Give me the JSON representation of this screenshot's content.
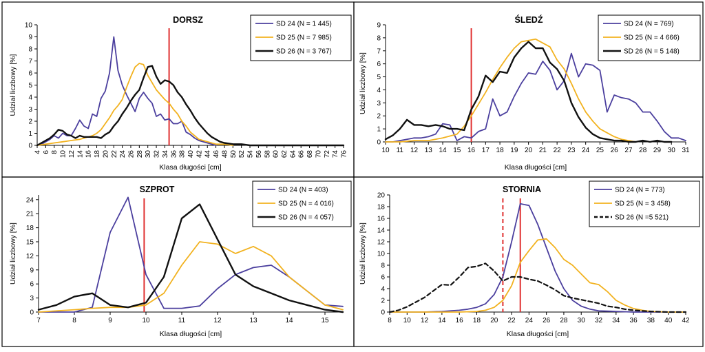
{
  "chart_data": [
    {
      "type": "line",
      "title": "DORSZ",
      "xlabel": "Klasa długości [cm]",
      "ylabel": "Udział liczbowy [%]",
      "xlim": [
        4,
        76
      ],
      "ylim": [
        0,
        10
      ],
      "xticks": [
        4,
        6,
        8,
        10,
        12,
        14,
        16,
        18,
        20,
        22,
        24,
        26,
        28,
        30,
        32,
        34,
        36,
        38,
        40,
        42,
        44,
        46,
        48,
        50,
        52,
        54,
        56,
        58,
        60,
        62,
        64,
        66,
        68,
        70,
        72,
        74,
        76
      ],
      "xtick_labels": [
        "4",
        "6",
        "8",
        "10",
        "12",
        "14",
        "16",
        "18",
        "20",
        "22",
        "24",
        "26",
        "28",
        "30",
        "32",
        "34",
        "36",
        "38",
        "40",
        "42",
        "44",
        "46",
        "48",
        "50",
        "52",
        "54",
        "56",
        "58",
        "60",
        "62",
        "64",
        "66",
        "68",
        "70",
        "72",
        "74",
        "76"
      ],
      "yticks": [
        0,
        1,
        2,
        3,
        4,
        5,
        6,
        7,
        8,
        9,
        10
      ],
      "legend_position": "top-right",
      "vlines": [
        {
          "x": 35,
          "color": "#e03030",
          "style": "solid"
        }
      ],
      "series": [
        {
          "name": "SD 24 (N = 1 445)",
          "color": "#4b3f9e",
          "style": "solid",
          "x": [
            4,
            5,
            6,
            7,
            8,
            9,
            10,
            11,
            12,
            13,
            14,
            15,
            16,
            17,
            18,
            19,
            20,
            21,
            22,
            23,
            24,
            25,
            26,
            27,
            28,
            29,
            30,
            31,
            32,
            33,
            34,
            35,
            36,
            37,
            38,
            39,
            40,
            41,
            42,
            43,
            44,
            45,
            46
          ],
          "y": [
            0,
            0.1,
            0.3,
            0.5,
            0.8,
            0.6,
            1,
            0.8,
            0.8,
            1.4,
            2.1,
            1.6,
            1.4,
            2.6,
            2.4,
            3.9,
            4.5,
            6,
            9,
            6.2,
            5,
            4.2,
            3.5,
            2.8,
            3.9,
            4.4,
            3.9,
            3.5,
            2.4,
            2.6,
            2.1,
            2.2,
            1.8,
            1.8,
            2,
            1.1,
            0.9,
            0.6,
            0.4,
            0.3,
            0.2,
            0.1,
            0
          ]
        },
        {
          "name": "SD 25 (N = 7 985)",
          "color": "#f2b21f",
          "style": "solid",
          "x": [
            4,
            6,
            8,
            10,
            12,
            14,
            16,
            17,
            18,
            19,
            20,
            21,
            22,
            23,
            24,
            25,
            26,
            27,
            28,
            29,
            30,
            31,
            32,
            33,
            34,
            35,
            36,
            37,
            38,
            39,
            40,
            41,
            42,
            43,
            44,
            45,
            46,
            48,
            50
          ],
          "y": [
            0,
            0.1,
            0.2,
            0.3,
            0.4,
            0.5,
            0.7,
            0.8,
            1,
            1.3,
            1.8,
            2.3,
            2.9,
            3.3,
            3.8,
            4.8,
            5.7,
            6.5,
            6.8,
            6.7,
            5.8,
            5.2,
            4.6,
            4.2,
            3.8,
            3.5,
            3,
            2.6,
            2,
            1.6,
            1.1,
            0.8,
            0.5,
            0.4,
            0.3,
            0.2,
            0.1,
            0.1,
            0
          ]
        },
        {
          "name": "SD 26 (N = 3 767)",
          "color": "#111111",
          "style": "solid",
          "x": [
            4,
            6,
            7,
            8,
            9,
            10,
            11,
            12,
            13,
            14,
            15,
            16,
            17,
            18,
            19,
            20,
            21,
            22,
            23,
            24,
            25,
            26,
            27,
            28,
            29,
            30,
            31,
            32,
            33,
            34,
            35,
            36,
            37,
            38,
            39,
            40,
            41,
            42,
            43,
            44,
            45,
            46,
            47,
            48,
            50,
            52,
            54,
            56,
            60,
            64,
            68,
            72,
            76
          ],
          "y": [
            0,
            0.4,
            0.6,
            0.9,
            1.3,
            1.2,
            0.9,
            0.8,
            0.6,
            0.8,
            0.7,
            0.7,
            0.7,
            0.7,
            0.6,
            0.9,
            1.1,
            1.6,
            2,
            2.6,
            3.1,
            3.7,
            4.2,
            4.6,
            5.6,
            6.5,
            6.6,
            5.7,
            5.1,
            5.4,
            5.3,
            5,
            4.4,
            4,
            3.4,
            2.9,
            2.3,
            1.8,
            1.4,
            1,
            0.7,
            0.5,
            0.3,
            0.2,
            0.1,
            0.1,
            0,
            0,
            0,
            0,
            0,
            0,
            0
          ]
        }
      ]
    },
    {
      "type": "line",
      "title": "ŚLEDŹ",
      "xlabel": "Klasa długości [cm]",
      "ylabel": "Udział liczbowy [%]",
      "xlim": [
        10,
        31
      ],
      "ylim": [
        0,
        9
      ],
      "xticks": [
        10,
        11,
        12,
        13,
        14,
        15,
        16,
        17,
        18,
        19,
        20,
        21,
        22,
        23,
        24,
        25,
        26,
        27,
        28,
        29,
        30,
        31
      ],
      "xtick_labels": [
        "10",
        "11",
        "12",
        "13",
        "14",
        "15",
        "16",
        "17",
        "18",
        "19",
        "20",
        "21",
        "22",
        "23",
        "24",
        "25",
        "26",
        "27",
        "28",
        "29",
        "30",
        "31"
      ],
      "yticks": [
        0,
        1,
        2,
        3,
        4,
        5,
        6,
        7,
        8,
        9
      ],
      "legend_position": "top-right",
      "vlines": [
        {
          "x": 16,
          "color": "#e03030",
          "style": "solid"
        }
      ],
      "series": [
        {
          "name": "SD 24 (N = 769)",
          "color": "#4b3f9e",
          "style": "solid",
          "x": [
            10,
            10.5,
            11,
            11.5,
            12,
            12.5,
            13,
            13.5,
            14,
            14.5,
            15,
            15.5,
            16,
            16.5,
            17,
            17.5,
            18,
            18.5,
            19,
            19.5,
            20,
            20.5,
            21,
            21.5,
            22,
            22.5,
            23,
            23.5,
            24,
            24.5,
            25,
            25.5,
            26,
            26.5,
            27,
            27.5,
            28,
            28.5,
            29,
            29.5,
            30,
            30.5,
            31
          ],
          "y": [
            0,
            0,
            0.1,
            0.2,
            0.3,
            0.3,
            0.4,
            0.6,
            1.4,
            1.3,
            0.1,
            0.4,
            0.3,
            0.8,
            1,
            3.3,
            2,
            2.3,
            3.5,
            4.5,
            5.3,
            5.2,
            6.2,
            5.5,
            4,
            4.7,
            6.8,
            5,
            6,
            5.9,
            5.5,
            2.3,
            3.6,
            3.4,
            3.3,
            3,
            2.3,
            2.3,
            1.6,
            0.8,
            0.3,
            0.3,
            0.1
          ]
        },
        {
          "name": "SD 25 (N = 4 666)",
          "color": "#f2b21f",
          "style": "solid",
          "x": [
            10,
            11,
            12,
            13,
            14,
            15,
            15.5,
            16,
            16.5,
            17,
            17.5,
            18,
            18.5,
            19,
            19.5,
            20,
            20.5,
            21,
            21.5,
            22,
            22.5,
            23,
            23.5,
            24,
            24.5,
            25,
            25.5,
            26,
            26.5,
            27,
            27.5
          ],
          "y": [
            0,
            0,
            0.1,
            0.1,
            0.3,
            0.6,
            1.2,
            2,
            2.9,
            3.8,
            4.8,
            5.7,
            6.5,
            7.2,
            7.7,
            7.8,
            7.9,
            7.6,
            7.3,
            6.3,
            5.6,
            4.5,
            3.3,
            2.3,
            1.6,
            1,
            0.7,
            0.4,
            0.2,
            0.1,
            0
          ]
        },
        {
          "name": "SD 26 (N = 5 148)",
          "color": "#111111",
          "style": "solid",
          "x": [
            10,
            10.5,
            11,
            11.5,
            12,
            12.5,
            13,
            13.5,
            14,
            14.5,
            15,
            15.5,
            16,
            16.5,
            17,
            17.5,
            18,
            18.5,
            19,
            19.5,
            20,
            20.5,
            21,
            21.5,
            22,
            22.5,
            23,
            23.5,
            24,
            24.5,
            25,
            25.5,
            26,
            26.5,
            27,
            27.5,
            28,
            28.5,
            29,
            29.5,
            30
          ],
          "y": [
            0.2,
            0.5,
            1,
            1.7,
            1.3,
            1.3,
            1.2,
            1.3,
            1.2,
            1,
            1,
            0.9,
            2.5,
            3.5,
            5.1,
            4.6,
            5.4,
            5.3,
            6.5,
            7.2,
            7.7,
            7.2,
            7.2,
            6.1,
            5.6,
            4.7,
            3,
            1.9,
            1.1,
            0.6,
            0.3,
            0.2,
            0.1,
            0.1,
            0,
            0,
            0.1,
            0,
            0.1,
            0,
            0
          ]
        }
      ]
    },
    {
      "type": "line",
      "title": "SZPROT",
      "xlabel": "Klasa długości [cm]",
      "ylabel": "Udział liczbowy [%]",
      "xlim": [
        7,
        15.5
      ],
      "ylim": [
        0,
        25
      ],
      "xticks": [
        7,
        8,
        9,
        10,
        11,
        12,
        13,
        14,
        15
      ],
      "xtick_labels": [
        "7",
        "8",
        "9",
        "10",
        "11",
        "12",
        "13",
        "14",
        "15"
      ],
      "yticks": [
        0,
        3,
        6,
        9,
        12,
        15,
        18,
        21,
        24
      ],
      "legend_position": "top-right",
      "vlines": [
        {
          "x": 9.95,
          "color": "#e03030",
          "style": "solid"
        }
      ],
      "series": [
        {
          "name": "SD 24 (N = 403)",
          "color": "#4b3f9e",
          "style": "solid",
          "x": [
            7,
            8,
            8.5,
            9,
            9.5,
            10,
            10.5,
            11,
            11.5,
            12,
            12.5,
            13,
            13.5,
            14,
            14.5,
            15,
            15.5
          ],
          "y": [
            0,
            0,
            1,
            17,
            24.5,
            8,
            0.8,
            0.8,
            1.3,
            5,
            8,
            9.5,
            10,
            7.5,
            4.5,
            1.5,
            1.2
          ]
        },
        {
          "name": "SD 25 (N = 4 016)",
          "color": "#f2b21f",
          "style": "solid",
          "x": [
            7,
            8,
            8.5,
            9,
            9.5,
            10,
            10.5,
            11,
            11.5,
            12,
            12.5,
            13,
            13.5,
            14,
            14.5,
            15,
            15.5
          ],
          "y": [
            0,
            0.5,
            0.8,
            1,
            1,
            1.5,
            4,
            10,
            15,
            14.5,
            12.5,
            14,
            12,
            7.5,
            4.5,
            1.5,
            0.5
          ]
        },
        {
          "name": "SD 26 (N = 4 057)",
          "color": "#111111",
          "style": "solid",
          "x": [
            7,
            7.5,
            8,
            8.5,
            9,
            9.5,
            10,
            10.5,
            11,
            11.5,
            12,
            12.5,
            13,
            13.5,
            14,
            14.5,
            15,
            15.5
          ],
          "y": [
            0.5,
            1.5,
            3.3,
            4,
            1.5,
            1,
            2,
            7.5,
            20,
            23,
            15.5,
            8,
            5.5,
            4,
            2.5,
            1.5,
            0.5,
            0
          ]
        }
      ]
    },
    {
      "type": "line",
      "title": "STORNIA",
      "xlabel": "Klasa długości [cm]",
      "ylabel": "Udział liczbowy [%]",
      "xlim": [
        8,
        42
      ],
      "ylim": [
        0,
        20
      ],
      "xticks": [
        8,
        10,
        12,
        14,
        16,
        18,
        20,
        22,
        24,
        26,
        28,
        30,
        32,
        34,
        36,
        38,
        40,
        42
      ],
      "xtick_labels": [
        "8",
        "10",
        "12",
        "14",
        "16",
        "18",
        "20",
        "22",
        "24",
        "26",
        "28",
        "30",
        "32",
        "34",
        "36",
        "38",
        "40",
        "42"
      ],
      "yticks": [
        0,
        2,
        4,
        6,
        8,
        10,
        12,
        14,
        16,
        18,
        20
      ],
      "legend_position": "top-right",
      "vlines": [
        {
          "x": 21,
          "color": "#e03030",
          "style": "dashed"
        },
        {
          "x": 23,
          "color": "#e03030",
          "style": "solid"
        }
      ],
      "series": [
        {
          "name": "SD 24 (N = 773)",
          "color": "#4b3f9e",
          "style": "solid",
          "x": [
            8,
            12,
            14,
            16,
            17,
            18,
            19,
            20,
            21,
            22,
            23,
            24,
            25,
            26,
            27,
            28,
            29,
            30,
            31,
            32,
            34,
            36,
            38,
            40,
            42
          ],
          "y": [
            0,
            0,
            0.1,
            0.3,
            0.5,
            0.8,
            1.4,
            3,
            6,
            12,
            18.5,
            18.2,
            15,
            11,
            7,
            4,
            2,
            1,
            0.5,
            0.2,
            0.1,
            0,
            0,
            0,
            0
          ]
        },
        {
          "name": "SD 25 (N = 3 458)",
          "color": "#f2b21f",
          "style": "solid",
          "x": [
            8,
            16,
            18,
            19,
            20,
            21,
            22,
            23,
            24,
            25,
            26,
            27,
            28,
            29,
            30,
            31,
            32,
            33,
            34,
            35,
            36,
            37,
            38,
            40,
            42
          ],
          "y": [
            0,
            0,
            0.1,
            0.3,
            0.8,
            2,
            4.5,
            8.5,
            10.5,
            12.3,
            12.5,
            11,
            9,
            8,
            6.5,
            5,
            4.7,
            3.5,
            2,
            1.2,
            0.6,
            0.3,
            0.1,
            0,
            0
          ]
        },
        {
          "name": "SD 26 (N =5 521)",
          "color": "#111111",
          "style": "dashed",
          "x": [
            8,
            9,
            10,
            11,
            12,
            13,
            14,
            15,
            16,
            17,
            18,
            19,
            20,
            21,
            22,
            23,
            24,
            25,
            26,
            27,
            28,
            29,
            30,
            31,
            32,
            33,
            34,
            35,
            36,
            37,
            38,
            40,
            42
          ],
          "y": [
            0,
            0.3,
            0.9,
            1.7,
            2.5,
            3.6,
            4.7,
            4.6,
            6,
            7.6,
            7.8,
            8.3,
            7,
            5.3,
            6,
            6,
            5.6,
            5.3,
            4.6,
            3.8,
            2.8,
            2.4,
            2.1,
            1.8,
            1.5,
            1,
            0.8,
            0.5,
            0.3,
            0.2,
            0.1,
            0,
            0
          ]
        }
      ]
    }
  ]
}
